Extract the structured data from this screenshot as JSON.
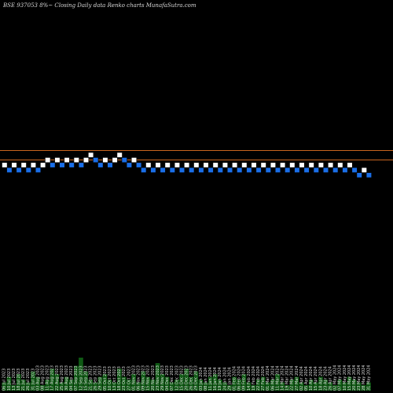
{
  "chart_data": {
    "type": "renko",
    "title": "BSE 937053 8%~  Closing Daily data  Renko  charts MunafaSutra.com",
    "y_scale_note": "",
    "reference_lines": [
      {
        "name": "upper",
        "color": "#c8641e"
      },
      {
        "name": "lower",
        "color": "#c8641e"
      }
    ],
    "colors": {
      "up_brick": "#ffffff",
      "down_brick": "#1a6ee8",
      "background": "#000000",
      "volume": "#0f5a14"
    },
    "bricks": [
      {
        "dir": "up",
        "level": 0
      },
      {
        "dir": "down",
        "level": -1
      },
      {
        "dir": "up",
        "level": 0
      },
      {
        "dir": "down",
        "level": -1
      },
      {
        "dir": "up",
        "level": 0
      },
      {
        "dir": "down",
        "level": -1
      },
      {
        "dir": "up",
        "level": 0
      },
      {
        "dir": "down",
        "level": -1
      },
      {
        "dir": "up",
        "level": 0
      },
      {
        "dir": "up",
        "level": 1
      },
      {
        "dir": "down",
        "level": 0
      },
      {
        "dir": "up",
        "level": 1
      },
      {
        "dir": "down",
        "level": 0
      },
      {
        "dir": "up",
        "level": 1
      },
      {
        "dir": "down",
        "level": 0
      },
      {
        "dir": "up",
        "level": 1
      },
      {
        "dir": "down",
        "level": 0
      },
      {
        "dir": "up",
        "level": 1
      },
      {
        "dir": "up",
        "level": 2
      },
      {
        "dir": "down",
        "level": 1
      },
      {
        "dir": "down",
        "level": 0
      },
      {
        "dir": "up",
        "level": 1
      },
      {
        "dir": "down",
        "level": 0
      },
      {
        "dir": "up",
        "level": 1
      },
      {
        "dir": "up",
        "level": 2
      },
      {
        "dir": "down",
        "level": 1
      },
      {
        "dir": "down",
        "level": 0
      },
      {
        "dir": "up",
        "level": 1
      },
      {
        "dir": "down",
        "level": 0
      },
      {
        "dir": "down",
        "level": -1
      },
      {
        "dir": "up",
        "level": 0
      },
      {
        "dir": "down",
        "level": -1
      },
      {
        "dir": "up",
        "level": 0
      },
      {
        "dir": "down",
        "level": -1
      },
      {
        "dir": "up",
        "level": 0
      },
      {
        "dir": "down",
        "level": -1
      },
      {
        "dir": "up",
        "level": 0
      },
      {
        "dir": "down",
        "level": -1
      },
      {
        "dir": "up",
        "level": 0
      },
      {
        "dir": "down",
        "level": -1
      },
      {
        "dir": "up",
        "level": 0
      },
      {
        "dir": "down",
        "level": -1
      },
      {
        "dir": "up",
        "level": 0
      },
      {
        "dir": "down",
        "level": -1
      },
      {
        "dir": "up",
        "level": 0
      },
      {
        "dir": "down",
        "level": -1
      },
      {
        "dir": "up",
        "level": 0
      },
      {
        "dir": "down",
        "level": -1
      },
      {
        "dir": "up",
        "level": 0
      },
      {
        "dir": "down",
        "level": -1
      },
      {
        "dir": "up",
        "level": 0
      },
      {
        "dir": "down",
        "level": -1
      },
      {
        "dir": "up",
        "level": 0
      },
      {
        "dir": "down",
        "level": -1
      },
      {
        "dir": "up",
        "level": 0
      },
      {
        "dir": "down",
        "level": -1
      },
      {
        "dir": "up",
        "level": 0
      },
      {
        "dir": "down",
        "level": -1
      },
      {
        "dir": "up",
        "level": 0
      },
      {
        "dir": "down",
        "level": -1
      },
      {
        "dir": "up",
        "level": 0
      },
      {
        "dir": "down",
        "level": -1
      },
      {
        "dir": "up",
        "level": 0
      },
      {
        "dir": "down",
        "level": -1
      },
      {
        "dir": "up",
        "level": 0
      },
      {
        "dir": "down",
        "level": -1
      },
      {
        "dir": "up",
        "level": 0
      },
      {
        "dir": "down",
        "level": -1
      },
      {
        "dir": "up",
        "level": 0
      },
      {
        "dir": "down",
        "level": -1
      },
      {
        "dir": "up",
        "level": 0
      },
      {
        "dir": "down",
        "level": -1
      },
      {
        "dir": "up",
        "level": 0
      },
      {
        "dir": "down",
        "level": -1
      },
      {
        "dir": "down",
        "level": -2
      },
      {
        "dir": "up",
        "level": -1
      },
      {
        "dir": "down",
        "level": -2
      }
    ],
    "x_labels": [
      "06 Jul 2023",
      "10 Jul 2023",
      "13 Jul 2023",
      "18 Jul 2023",
      "21 Jul 2023",
      "26 Jul 2023",
      "31 Jul 2023",
      "03 Aug 2023",
      "08 Aug 2023",
      "11 Aug 2023",
      "17 Aug 2023",
      "22 Aug 2023",
      "25 Aug 2023",
      "30 Aug 2023",
      "04 Sep 2023",
      "07 Sep 2023",
      "12 Sep 2023",
      "15 Sep 2023",
      "21 Sep 2023",
      "26 Sep 2023",
      "29 Sep 2023",
      "05 Oct 2023",
      "10 Oct 2023",
      "13 Oct 2023",
      "18 Oct 2023",
      "23 Oct 2023",
      "27 Oct 2023",
      "01 Nov 2023",
      "06 Nov 2023",
      "09 Nov 2023",
      "15 Nov 2023",
      "20 Nov 2023",
      "23 Nov 2023",
      "29 Nov 2023",
      "04 Dec 2023",
      "07 Dec 2023",
      "12 Dec 2023",
      "15 Dec 2023",
      "20 Dec 2023",
      "26 Dec 2023",
      "29 Dec 2023",
      "03 Jan 2024",
      "08 Jan 2024",
      "11 Jan 2024",
      "16 Jan 2024",
      "19 Jan 2024",
      "24 Jan 2024",
      "29 Jan 2024",
      "01 Feb 2024",
      "06 Feb 2024",
      "09 Feb 2024",
      "14 Feb 2024",
      "19 Feb 2024",
      "22 Feb 2024",
      "27 Feb 2024",
      "01 Mar 2024",
      "06 Mar 2024",
      "11 Mar 2024",
      "14 Mar 2024",
      "19 Mar 2024",
      "22 Mar 2024",
      "27 Mar 2024",
      "02 Apr 2024",
      "05 Apr 2024",
      "10 Apr 2024",
      "15 Apr 2024",
      "18 Apr 2024",
      "23 Apr 2024",
      "26 Apr 2024",
      "02 May 2024",
      "07 May 2024",
      "10 May 2024",
      "15 May 2024",
      "20 May 2024",
      "23 May 2024",
      "28 May 2024",
      "31 May 2024"
    ],
    "volume": [
      3,
      5,
      2,
      6,
      4,
      3,
      7,
      5,
      2,
      4,
      8,
      6,
      3,
      5,
      4,
      9,
      12,
      7,
      4,
      3,
      5,
      6,
      4,
      3,
      8,
      5,
      4,
      6,
      3,
      7,
      5,
      4,
      10,
      6,
      5,
      3,
      4,
      6,
      8,
      5,
      7,
      4,
      3,
      5,
      6,
      4,
      3,
      2,
      5,
      4,
      6,
      3,
      2,
      4,
      5,
      3,
      4,
      6,
      3,
      2,
      4,
      5,
      3,
      2,
      4,
      3,
      5,
      4,
      3,
      2,
      4,
      3,
      5,
      4,
      3,
      2,
      3
    ]
  }
}
